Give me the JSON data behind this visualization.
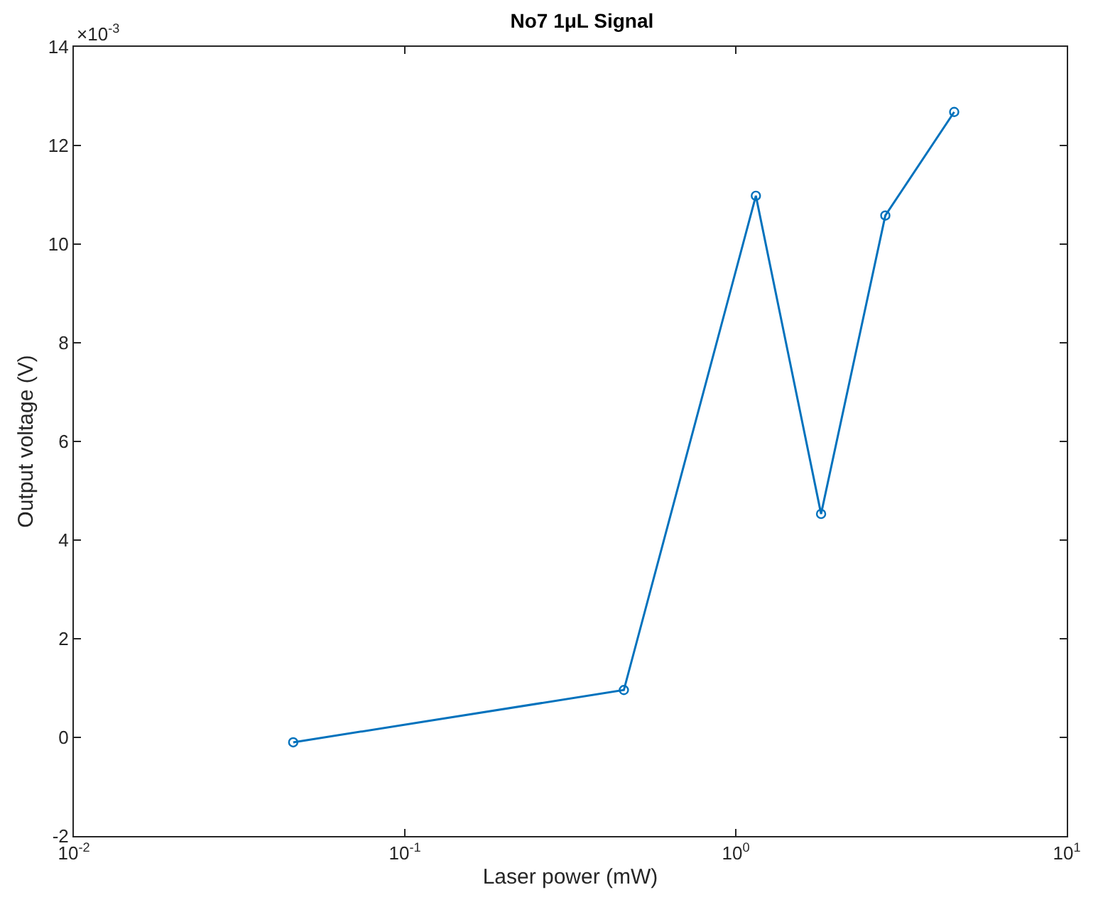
{
  "chart_data": {
    "type": "line",
    "title": "No7 1μL Signal",
    "xlabel": "Laser power (mW)",
    "ylabel": "Output voltage (V)",
    "annotations": [
      "×10$^{-3}$"
    ],
    "x": [
      0.046,
      0.459,
      1.15,
      1.81,
      2.83,
      4.57
    ],
    "series": [
      {
        "color": "#0072bd",
        "values": [
          -0.1,
          0.96,
          10.98,
          4.53,
          10.58,
          12.68
        ]
      }
    ],
    "log": "x",
    "marker": "circle",
    "line_style": "solid",
    "xlim": [
      0.01,
      10
    ],
    "xticks": [
      {
        "value": 0.01,
        "label": "10$^{-2}$"
      },
      {
        "value": 0.1,
        "label": "10$^{-1}$"
      },
      {
        "value": 1,
        "label": "10$^{0}$"
      },
      {
        "value": 10,
        "label": "10$^{1}$"
      }
    ],
    "ylim": [
      -2,
      14
    ],
    "yticks": [
      -2,
      0,
      2,
      4,
      6,
      8,
      10,
      12,
      14
    ]
  }
}
